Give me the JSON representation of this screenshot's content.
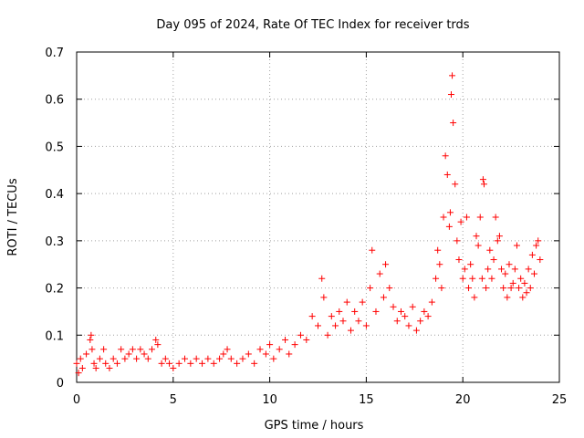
{
  "chart_data": {
    "type": "scatter",
    "title": "Day 095 of 2024, Rate Of TEC Index for receiver trds",
    "xlabel": "GPS time / hours",
    "ylabel": "ROTI / TECUs",
    "xlim": [
      0,
      25
    ],
    "ylim": [
      0,
      0.7
    ],
    "xticks": [
      "0",
      "5",
      "10",
      "15",
      "20",
      "25"
    ],
    "yticks": [
      "0",
      "0.1",
      "0.2",
      "0.3",
      "0.4",
      "0.5",
      "0.6",
      "0.7"
    ],
    "grid": true,
    "marker": "+",
    "color": "#ff0000",
    "series": [
      {
        "name": "ROTI",
        "x": [
          0.0,
          0.1,
          0.2,
          0.3,
          0.5,
          0.7,
          0.75,
          0.8,
          0.9,
          1.0,
          1.2,
          1.4,
          1.5,
          1.7,
          1.9,
          2.1,
          2.3,
          2.5,
          2.7,
          2.9,
          3.1,
          3.3,
          3.5,
          3.7,
          3.9,
          4.1,
          4.2,
          4.4,
          4.6,
          4.8,
          5.0,
          5.3,
          5.6,
          5.9,
          6.2,
          6.5,
          6.8,
          7.1,
          7.4,
          7.6,
          7.8,
          8.0,
          8.3,
          8.6,
          8.9,
          9.2,
          9.5,
          9.8,
          10.0,
          10.2,
          10.5,
          10.8,
          11.0,
          11.3,
          11.6,
          11.9,
          12.2,
          12.5,
          12.7,
          12.8,
          13.0,
          13.2,
          13.4,
          13.6,
          13.8,
          14.0,
          14.2,
          14.4,
          14.6,
          14.8,
          15.0,
          15.2,
          15.3,
          15.5,
          15.7,
          15.9,
          16.0,
          16.2,
          16.4,
          16.6,
          16.8,
          17.0,
          17.2,
          17.4,
          17.6,
          17.8,
          18.0,
          18.2,
          18.4,
          18.6,
          18.7,
          18.8,
          18.9,
          19.0,
          19.1,
          19.2,
          19.3,
          19.35,
          19.4,
          19.45,
          19.5,
          19.6,
          19.7,
          19.8,
          19.9,
          20.0,
          20.1,
          20.2,
          20.3,
          20.4,
          20.5,
          20.6,
          20.7,
          20.8,
          20.9,
          21.0,
          21.05,
          21.1,
          21.2,
          21.3,
          21.4,
          21.5,
          21.6,
          21.7,
          21.8,
          21.9,
          22.0,
          22.1,
          22.2,
          22.3,
          22.4,
          22.5,
          22.6,
          22.7,
          22.8,
          22.9,
          23.0,
          23.1,
          23.2,
          23.3,
          23.4,
          23.5,
          23.6,
          23.7,
          23.8,
          23.9,
          24.0
        ],
        "y": [
          0.04,
          0.02,
          0.05,
          0.03,
          0.06,
          0.09,
          0.1,
          0.07,
          0.04,
          0.03,
          0.05,
          0.07,
          0.04,
          0.03,
          0.05,
          0.04,
          0.07,
          0.05,
          0.06,
          0.07,
          0.05,
          0.07,
          0.06,
          0.05,
          0.07,
          0.09,
          0.08,
          0.04,
          0.05,
          0.04,
          0.03,
          0.04,
          0.05,
          0.04,
          0.05,
          0.04,
          0.05,
          0.04,
          0.05,
          0.06,
          0.07,
          0.05,
          0.04,
          0.05,
          0.06,
          0.04,
          0.07,
          0.06,
          0.08,
          0.05,
          0.07,
          0.09,
          0.06,
          0.08,
          0.1,
          0.09,
          0.14,
          0.12,
          0.22,
          0.18,
          0.1,
          0.14,
          0.12,
          0.15,
          0.13,
          0.17,
          0.11,
          0.15,
          0.13,
          0.17,
          0.12,
          0.2,
          0.28,
          0.15,
          0.23,
          0.18,
          0.25,
          0.2,
          0.16,
          0.13,
          0.15,
          0.14,
          0.12,
          0.16,
          0.11,
          0.13,
          0.15,
          0.14,
          0.17,
          0.22,
          0.28,
          0.25,
          0.2,
          0.35,
          0.48,
          0.44,
          0.33,
          0.36,
          0.61,
          0.65,
          0.55,
          0.42,
          0.3,
          0.26,
          0.34,
          0.22,
          0.24,
          0.35,
          0.2,
          0.25,
          0.22,
          0.18,
          0.31,
          0.29,
          0.35,
          0.22,
          0.43,
          0.42,
          0.2,
          0.24,
          0.28,
          0.22,
          0.26,
          0.35,
          0.3,
          0.31,
          0.24,
          0.2,
          0.23,
          0.18,
          0.25,
          0.2,
          0.21,
          0.24,
          0.29,
          0.2,
          0.22,
          0.18,
          0.21,
          0.19,
          0.24,
          0.2,
          0.27,
          0.23,
          0.29,
          0.3,
          0.26
        ]
      }
    ]
  }
}
